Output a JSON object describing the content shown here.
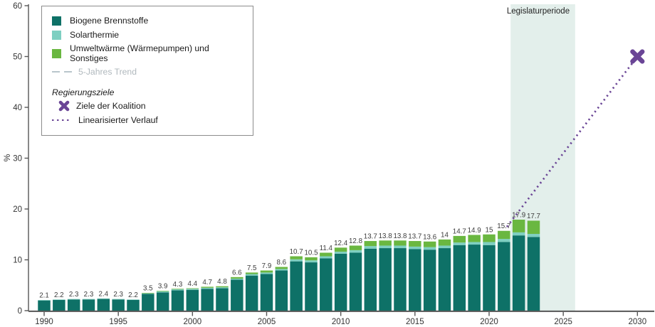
{
  "colors": {
    "biogene": "#0e7167",
    "solarthermie": "#7ecfc1",
    "umweltwaerme": "#6ab740",
    "trend_line": "#b9c5cc",
    "goal_purple": "#6a4596",
    "legislatur_fill": "#e3efeb",
    "axis": "#565656",
    "bar_label": "#3d3d3d"
  },
  "legend": {
    "items": [
      {
        "label": "Biogene Brennstoffe",
        "swatch": "square",
        "color_key": "biogene"
      },
      {
        "label": "Solarthermie",
        "swatch": "square",
        "color_key": "solarthermie"
      },
      {
        "label": "Umweltwärme (Wärmepumpen) und Sonstiges",
        "swatch": "square",
        "color_key": "umweltwaerme"
      },
      {
        "label": "5-Jahres Trend",
        "swatch": "dash",
        "color_key": "trend_line",
        "muted": true
      }
    ],
    "subtitle": "Regierungsziele",
    "goal_items": [
      {
        "label": "Ziele der Koalition",
        "swatch": "x",
        "color_key": "goal_purple"
      },
      {
        "label": "Linearisierter Verlauf",
        "swatch": "dot",
        "color_key": "goal_purple"
      }
    ]
  },
  "annotation": {
    "label": "Legislaturperiode",
    "from_year": 2021.45,
    "to_year": 2025.8
  },
  "chart_data": {
    "type": "bar",
    "stacked": true,
    "ylabel": "%",
    "ylim": [
      0,
      60
    ],
    "yticks": [
      0,
      10,
      20,
      30,
      40,
      50,
      60
    ],
    "xticks": [
      1990,
      1995,
      2000,
      2005,
      2010,
      2015,
      2020,
      2025,
      2030
    ],
    "xlim": [
      1989,
      2031
    ],
    "grid": false,
    "legend_position": "upper-left",
    "years": [
      1990,
      1991,
      1992,
      1993,
      1994,
      1995,
      1996,
      1997,
      1998,
      1999,
      2000,
      2001,
      2002,
      2003,
      2004,
      2005,
      2006,
      2007,
      2008,
      2009,
      2010,
      2011,
      2012,
      2013,
      2014,
      2015,
      2016,
      2017,
      2018,
      2019,
      2020,
      2021,
      2022,
      2023
    ],
    "series": [
      {
        "name": "Biogene Brennstoffe",
        "values": [
          2.0,
          2.1,
          2.2,
          2.2,
          2.3,
          2.2,
          2.1,
          3.3,
          3.6,
          4.0,
          4.1,
          4.3,
          4.4,
          6.1,
          6.9,
          7.2,
          7.9,
          9.7,
          9.5,
          10.3,
          11.2,
          11.4,
          12.2,
          12.3,
          12.3,
          12.1,
          12.0,
          12.3,
          12.9,
          13.0,
          12.9,
          13.5,
          14.8,
          14.5
        ]
      },
      {
        "name": "Solarthermie",
        "values": [
          0.1,
          0.1,
          0.1,
          0.1,
          0.1,
          0.1,
          0.1,
          0.1,
          0.2,
          0.2,
          0.2,
          0.2,
          0.2,
          0.2,
          0.3,
          0.3,
          0.3,
          0.4,
          0.4,
          0.4,
          0.4,
          0.5,
          0.5,
          0.5,
          0.5,
          0.5,
          0.5,
          0.5,
          0.5,
          0.5,
          0.6,
          0.6,
          0.6,
          0.6
        ]
      },
      {
        "name": "Umweltwärme (Wärmepumpen) und Sonstiges",
        "values": [
          0,
          0,
          0,
          0,
          0,
          0,
          0,
          0.1,
          0.1,
          0.1,
          0.1,
          0.2,
          0.2,
          0.3,
          0.3,
          0.4,
          0.4,
          0.6,
          0.6,
          0.7,
          0.8,
          0.9,
          1.0,
          1.0,
          1.0,
          1.1,
          1.1,
          1.2,
          1.3,
          1.4,
          1.5,
          1.6,
          2.5,
          2.6
        ]
      }
    ],
    "totals_labels": [
      "2.1",
      "2.2",
      "2.3",
      "2.3",
      "2.4",
      "2.3",
      "2.2",
      "3.5",
      "3.9",
      "4.3",
      "4.4",
      "4.7",
      "4.8",
      "6.6",
      "7.5",
      "7.9",
      "8.6",
      "10.7",
      "10.5",
      "11.4",
      "12.4",
      "12.8",
      "13.7",
      "13.8",
      "13.8",
      "13.7",
      "13.6",
      "14",
      "14.7",
      "14.9",
      "15",
      "15.7",
      "17.9",
      "17.7"
    ],
    "goal_point": {
      "year": 2030,
      "value": 50,
      "name": "Ziele der Koalition"
    },
    "linear_path": {
      "name": "Linearisierter Verlauf",
      "from": {
        "year": 2021.2,
        "value": 16.5
      },
      "to": {
        "year": 2030,
        "value": 50
      }
    }
  }
}
